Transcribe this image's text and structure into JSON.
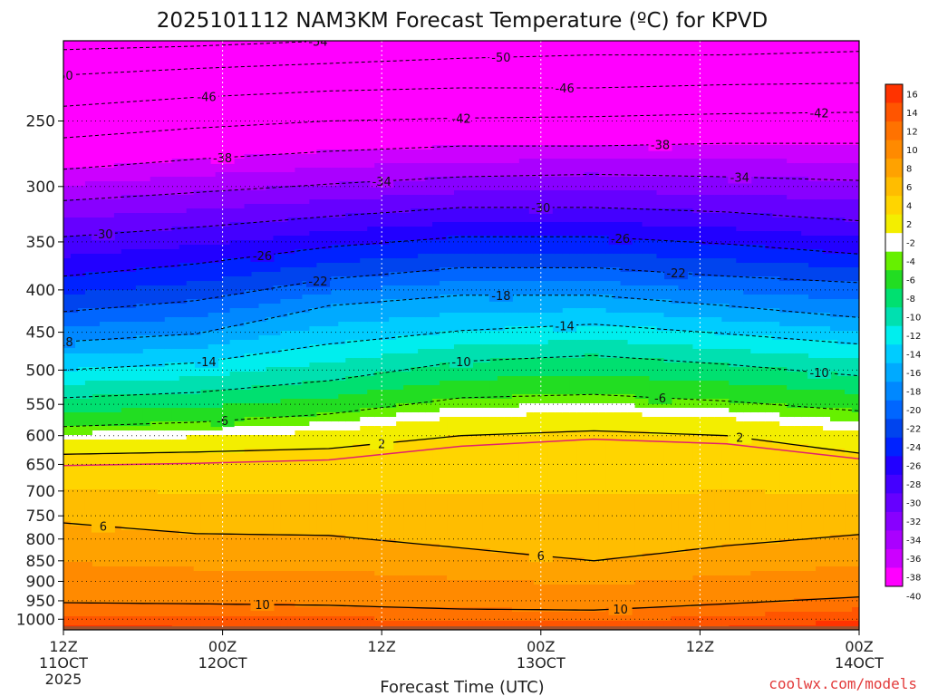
{
  "chart_data": {
    "type": "heatmap",
    "title": "2025101112 NAM3KM Forecast Temperature (ºC) for KPVD",
    "xlabel": "Forecast Time (UTC)",
    "ylabel": "",
    "credit": "coolwx.com/models",
    "x_ticks": [
      {
        "hour": 0,
        "lines": [
          "12Z",
          "11OCT",
          "2025"
        ]
      },
      {
        "hour": 12,
        "lines": [
          "00Z",
          "12OCT"
        ]
      },
      {
        "hour": 24,
        "lines": [
          "12Z"
        ]
      },
      {
        "hour": 36,
        "lines": [
          "00Z",
          "13OCT"
        ]
      },
      {
        "hour": 48,
        "lines": [
          "12Z"
        ]
      },
      {
        "hour": 60,
        "lines": [
          "00Z",
          "14OCT"
        ]
      }
    ],
    "x_range_hours": [
      0,
      60
    ],
    "y_ticks": [
      250,
      300,
      350,
      400,
      450,
      500,
      550,
      600,
      650,
      700,
      750,
      800,
      850,
      900,
      950,
      1000
    ],
    "y_range_hpa": [
      200,
      1030
    ],
    "y_scale": "log-pressure",
    "grid": true,
    "colorbar": {
      "placement": "right",
      "labels": [
        16,
        14,
        12,
        10,
        8,
        6,
        4,
        2,
        -2,
        -4,
        -6,
        -8,
        -10,
        -12,
        -14,
        -16,
        -18,
        -20,
        -22,
        -24,
        -26,
        -28,
        -30,
        -32,
        -34,
        -36,
        -38,
        -40
      ],
      "colors": [
        "#ff3300",
        "#ff5500",
        "#ff7200",
        "#ff8a00",
        "#ffa200",
        "#ffbd00",
        "#ffd500",
        "#f3ee00",
        "#ffffff",
        "#66f000",
        "#22dd22",
        "#00e070",
        "#00e0b0",
        "#00eeee",
        "#00ccff",
        "#00aaff",
        "#0088ff",
        "#0066ff",
        "#0044ee",
        "#0022ff",
        "#2200ff",
        "#4400ff",
        "#6600ff",
        "#8800ff",
        "#aa00ff",
        "#cc00ff",
        "#ff00ff"
      ]
    },
    "isotherms": [
      {
        "t": -54,
        "p": [
          205,
          203,
          200,
          198,
          196,
          196,
          195
        ]
      },
      {
        "t": -50,
        "p": [
          220,
          216,
          213,
          210,
          208,
          208,
          206
        ]
      },
      {
        "t": -46,
        "p": [
          240,
          234,
          230,
          228,
          228,
          226,
          225
        ]
      },
      {
        "t": -42,
        "p": [
          262,
          255,
          250,
          248,
          247,
          245,
          244
        ]
      },
      {
        "t": -38,
        "p": [
          286,
          278,
          272,
          268,
          268,
          266,
          266
        ]
      },
      {
        "t": -34,
        "p": [
          312,
          305,
          298,
          292,
          290,
          292,
          295
        ]
      },
      {
        "t": -30,
        "p": [
          345,
          336,
          326,
          318,
          318,
          322,
          330
        ]
      },
      {
        "t": -26,
        "p": [
          385,
          372,
          355,
          345,
          345,
          352,
          362
        ]
      },
      {
        "t": -22,
        "p": [
          425,
          412,
          388,
          376,
          376,
          385,
          392
        ]
      },
      {
        "t": -18,
        "p": [
          462,
          452,
          418,
          406,
          406,
          418,
          432
        ]
      },
      {
        "t": -14,
        "p": [
          500,
          490,
          465,
          448,
          440,
          452,
          465
        ]
      },
      {
        "t": -10,
        "p": [
          540,
          532,
          515,
          488,
          480,
          492,
          508
        ]
      },
      {
        "t": -6,
        "p": [
          585,
          578,
          565,
          540,
          535,
          545,
          560
        ]
      },
      {
        "t": 2,
        "p": [
          632,
          628,
          622,
          600,
          592,
          600,
          630
        ]
      },
      {
        "t": 6,
        "p": [
          765,
          788,
          792,
          820,
          850,
          815,
          790
        ]
      },
      {
        "t": 10,
        "p": [
          955,
          958,
          962,
          972,
          975,
          958,
          940
        ]
      }
    ],
    "isotherm_hours": [
      0,
      10,
      20,
      30,
      40,
      50,
      60
    ],
    "freezing_line_hpa": [
      652,
      648,
      642,
      618,
      606,
      614,
      640
    ],
    "surface_hpa": 1020
  }
}
